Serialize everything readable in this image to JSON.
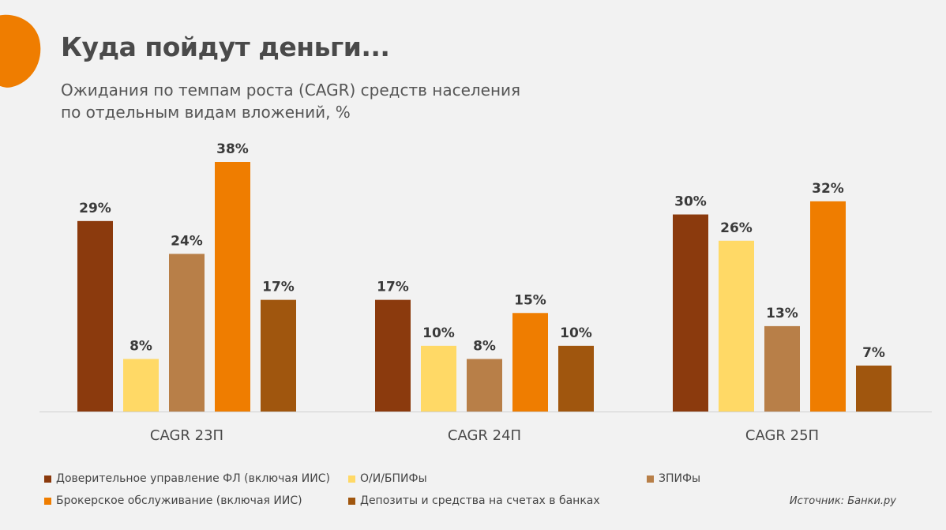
{
  "title": "Куда пойдут деньги...",
  "subtitle_lines": [
    "Ожидания по темпам роста (CAGR) средств населения",
    "по отдельным видам вложений, %"
  ],
  "source": "Источник: Банки.ру",
  "colors": {
    "background": "#f2f2f2",
    "accent": "#ef7d00"
  },
  "chart_data": {
    "type": "bar",
    "categories": [
      "CAGR 23П",
      "CAGR 24П",
      "CAGR 25П"
    ],
    "ylim": [
      0,
      40
    ],
    "value_suffix": "%",
    "series": [
      {
        "name": "Доверительное управление ФЛ (включая ИИС)",
        "color": "#8b3a0d",
        "values": [
          29,
          17,
          30
        ]
      },
      {
        "name": "О/И/БПИФы",
        "color": "#ffd966",
        "values": [
          8,
          10,
          26
        ]
      },
      {
        "name": "ЗПИФы",
        "color": "#b87f48",
        "values": [
          24,
          8,
          13
        ]
      },
      {
        "name": "Брокерское обслуживание (включая ИИС)",
        "color": "#ef7d00",
        "values": [
          38,
          15,
          32
        ]
      },
      {
        "name": "Депозиты и средства на счетах в банках",
        "color": "#a0560e",
        "values": [
          17,
          10,
          7
        ]
      }
    ]
  }
}
